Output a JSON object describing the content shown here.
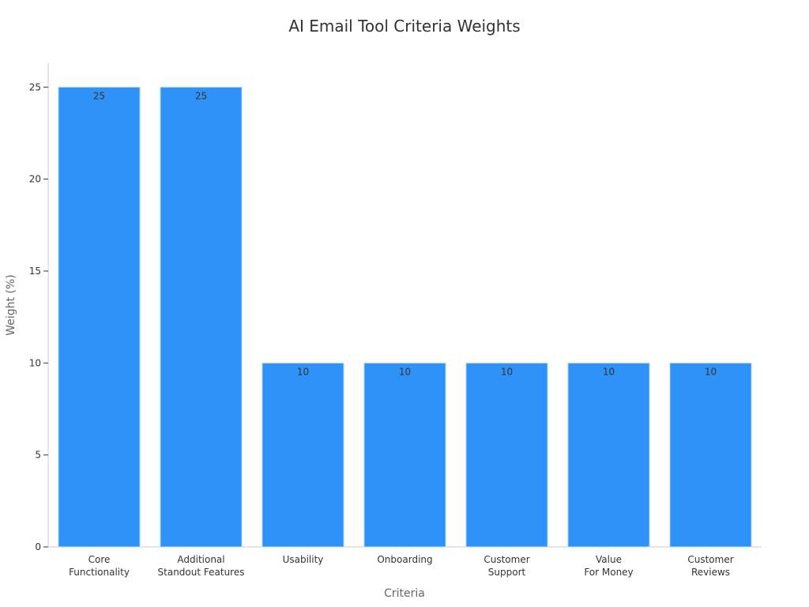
{
  "chart_data": {
    "type": "bar",
    "title": "AI Email Tool Criteria Weights",
    "xlabel": "Criteria",
    "ylabel": "Weight (%)",
    "categories": [
      [
        "Core",
        "Functionality"
      ],
      [
        "Additional",
        "Standout Features"
      ],
      [
        "Usability"
      ],
      [
        "Onboarding"
      ],
      [
        "Customer",
        "Support"
      ],
      [
        "Value",
        "For Money"
      ],
      [
        "Customer",
        "Reviews"
      ]
    ],
    "values": [
      25,
      25,
      10,
      10,
      10,
      10,
      10
    ],
    "data_labels": [
      "25",
      "25",
      "10",
      "10",
      "10",
      "10",
      "10"
    ],
    "ylim": [
      0,
      26.3
    ],
    "yticks": [
      0,
      5,
      10,
      15,
      20,
      25
    ],
    "grid": false,
    "legend": "none",
    "bar_color": "#2f92f7",
    "bar_edge_color": "#bcdcfb",
    "axis_color": "#cccccc",
    "text_color": "#333333",
    "label_color": "#666666"
  }
}
